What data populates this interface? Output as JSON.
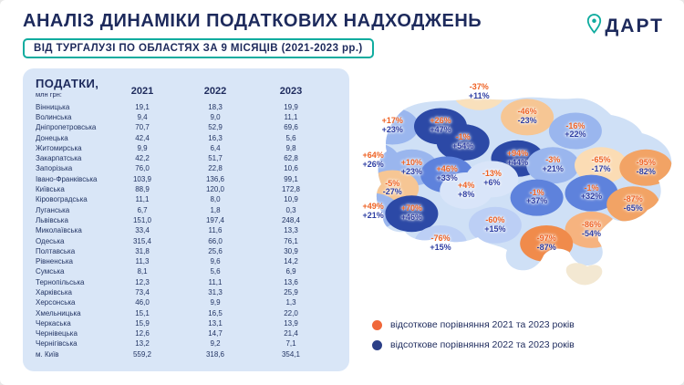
{
  "header": {
    "title": "АНАЛІЗ ДИНАМІКИ ПОДАТКОВИХ НАДХОДЖЕНЬ",
    "subtitle": "ВІД ТУРГАЛУЗІ ПО ОБЛАСТЯХ ЗА 9 МІСЯЦІВ (2021-2023 рр.)",
    "logo_text": "ДАРТ"
  },
  "table": {
    "title": "ПОДАТКИ,",
    "unit": "млн грн:"
  },
  "colors": {
    "navy": "#1D2A5C",
    "teal": "#10AC9F",
    "label_orange": "#EE6123",
    "label_blue": "#2F3FA3",
    "panel_blue": "#D9E6F7",
    "map_base": "#CFE0F6",
    "crimea": "#F3E8D2"
  },
  "chart_data": [
    {
      "type": "table",
      "title": "ПОДАТКИ, млн грн",
      "columns": [
        "2021",
        "2022",
        "2023"
      ],
      "rows": [
        {
          "region": "Вінницька",
          "values": [
            19.1,
            18.3,
            19.9
          ]
        },
        {
          "region": "Волинська",
          "values": [
            9.4,
            9.0,
            11.1
          ]
        },
        {
          "region": "Дніпропетровська",
          "values": [
            70.7,
            52.9,
            69.6
          ]
        },
        {
          "region": "Донецька",
          "values": [
            42.4,
            16.3,
            5.6
          ]
        },
        {
          "region": "Житомирська",
          "values": [
            9.9,
            6.4,
            9.8
          ]
        },
        {
          "region": "Закарпатська",
          "values": [
            42.2,
            51.7,
            62.8
          ]
        },
        {
          "region": "Запорізька",
          "values": [
            76.0,
            22.8,
            10.6
          ]
        },
        {
          "region": "Івано-Франківська",
          "values": [
            103.9,
            136.6,
            99.1
          ]
        },
        {
          "region": "Київська",
          "values": [
            88.9,
            120.0,
            172.8
          ]
        },
        {
          "region": "Кіровоградська",
          "values": [
            11.1,
            8.0,
            10.9
          ]
        },
        {
          "region": "Луганська",
          "values": [
            6.7,
            1.8,
            0.3
          ]
        },
        {
          "region": "Львівська",
          "values": [
            151.0,
            197.4,
            248.4
          ]
        },
        {
          "region": "Миколаївська",
          "values": [
            33.4,
            11.6,
            13.3
          ]
        },
        {
          "region": "Одеська",
          "values": [
            315.4,
            66.0,
            76.1
          ]
        },
        {
          "region": "Полтавська",
          "values": [
            31.8,
            25.6,
            30.9
          ]
        },
        {
          "region": "Рівненська",
          "values": [
            11.3,
            9.6,
            14.2
          ]
        },
        {
          "region": "Сумська",
          "values": [
            8.1,
            5.6,
            6.9
          ]
        },
        {
          "region": "Тернопільська",
          "values": [
            12.3,
            11.1,
            13.6
          ]
        },
        {
          "region": "Харківська",
          "values": [
            73.4,
            31.3,
            25.9
          ]
        },
        {
          "region": "Херсонська",
          "values": [
            46.0,
            9.9,
            1.3
          ]
        },
        {
          "region": "Хмельницька",
          "values": [
            15.1,
            16.5,
            22.0
          ]
        },
        {
          "region": "Черкаська",
          "values": [
            15.9,
            13.1,
            13.9
          ]
        },
        {
          "region": "Чернівецька",
          "values": [
            12.6,
            14.7,
            21.4
          ]
        },
        {
          "region": "Чернігівська",
          "values": [
            13.2,
            9.2,
            7.1
          ]
        },
        {
          "region": "м. Київ",
          "values": [
            559.2,
            318.6,
            354.1
          ]
        }
      ]
    },
    {
      "type": "heatmap",
      "subtype": "ukraine-choropleth",
      "series": [
        {
          "name": "відсоткове порівняння 2021 та 2023 років",
          "color": "#F0683A"
        },
        {
          "name": "відсоткове порівняння 2022 та 2023 років",
          "color": "#2B3F87"
        }
      ],
      "labels": [
        {
          "pct_2021_2023": "-37%",
          "pct_2022_2023": "+11%",
          "x": 39,
          "y": 9,
          "fill": "#F9E0BC"
        },
        {
          "pct_2021_2023": "-46%",
          "pct_2022_2023": "-23%",
          "x": 54,
          "y": 20,
          "fill": "#F6C694"
        },
        {
          "pct_2021_2023": "-16%",
          "pct_2022_2023": "+22%",
          "x": 69,
          "y": 26,
          "fill": "#9AB6EE"
        },
        {
          "pct_2021_2023": "+17%",
          "pct_2022_2023": "+23%",
          "x": 12,
          "y": 24,
          "fill": "#9AB6EE"
        },
        {
          "pct_2021_2023": "+26%",
          "pct_2022_2023": "+47%",
          "x": 27,
          "y": 24,
          "fill": "#2C49A6"
        },
        {
          "pct_2021_2023": "-1%",
          "pct_2022_2023": "+54%",
          "x": 34,
          "y": 31,
          "fill": "#2C49A6"
        },
        {
          "pct_2021_2023": "+94%",
          "pct_2022_2023": "+44%",
          "x": 51,
          "y": 38,
          "fill": "#2C49A6"
        },
        {
          "pct_2021_2023": "+64%",
          "pct_2022_2023": "+26%",
          "x": 6,
          "y": 39,
          "fill": "#9AB6EE"
        },
        {
          "pct_2021_2023": "+10%",
          "pct_2022_2023": "+23%",
          "x": 18,
          "y": 42,
          "fill": "#9AB6EE"
        },
        {
          "pct_2021_2023": "+46%",
          "pct_2022_2023": "+33%",
          "x": 29,
          "y": 45,
          "fill": "#5E82DC"
        },
        {
          "pct_2021_2023": "-13%",
          "pct_2022_2023": "+6%",
          "x": 43,
          "y": 47,
          "fill": "#D9E5F9"
        },
        {
          "pct_2021_2023": "-3%",
          "pct_2022_2023": "+21%",
          "x": 62,
          "y": 41,
          "fill": "#9AB6EE"
        },
        {
          "pct_2021_2023": "-65%",
          "pct_2022_2023": "-17%",
          "x": 77,
          "y": 41,
          "fill": "#FBDCB4"
        },
        {
          "pct_2021_2023": "-95%",
          "pct_2022_2023": "-82%",
          "x": 91,
          "y": 42,
          "fill": "#F2A365"
        },
        {
          "pct_2021_2023": "-5%",
          "pct_2022_2023": "-27%",
          "x": 12,
          "y": 51,
          "fill": "#F6C694"
        },
        {
          "pct_2021_2023": "+4%",
          "pct_2022_2023": "+8%",
          "x": 35,
          "y": 52,
          "fill": "#D9E5F9"
        },
        {
          "pct_2021_2023": "-1%",
          "pct_2022_2023": "+37%",
          "x": 57,
          "y": 55,
          "fill": "#5E82DC"
        },
        {
          "pct_2021_2023": "+49%",
          "pct_2022_2023": "+21%",
          "x": 6,
          "y": 61,
          "fill": "#9AB6EE"
        },
        {
          "pct_2021_2023": "+70%",
          "pct_2022_2023": "+46%",
          "x": 18,
          "y": 62,
          "fill": "#2C49A6"
        },
        {
          "pct_2021_2023": "-1%",
          "pct_2022_2023": "+32%",
          "x": 74,
          "y": 53,
          "fill": "#5E82DC"
        },
        {
          "pct_2021_2023": "-87%",
          "pct_2022_2023": "-65%",
          "x": 87,
          "y": 58,
          "fill": "#F2A365"
        },
        {
          "pct_2021_2023": "-60%",
          "pct_2022_2023": "+15%",
          "x": 44,
          "y": 67,
          "fill": "#BCCFF5"
        },
        {
          "pct_2021_2023": "-86%",
          "pct_2022_2023": "-54%",
          "x": 74,
          "y": 69,
          "fill": "#F6B37F"
        },
        {
          "pct_2021_2023": "-76%",
          "pct_2022_2023": "+15%",
          "x": 27,
          "y": 75,
          "fill": "#BCCFF5"
        },
        {
          "pct_2021_2023": "-97%",
          "pct_2022_2023": "-87%",
          "x": 60,
          "y": 75,
          "fill": "#F08B4B"
        }
      ]
    }
  ]
}
